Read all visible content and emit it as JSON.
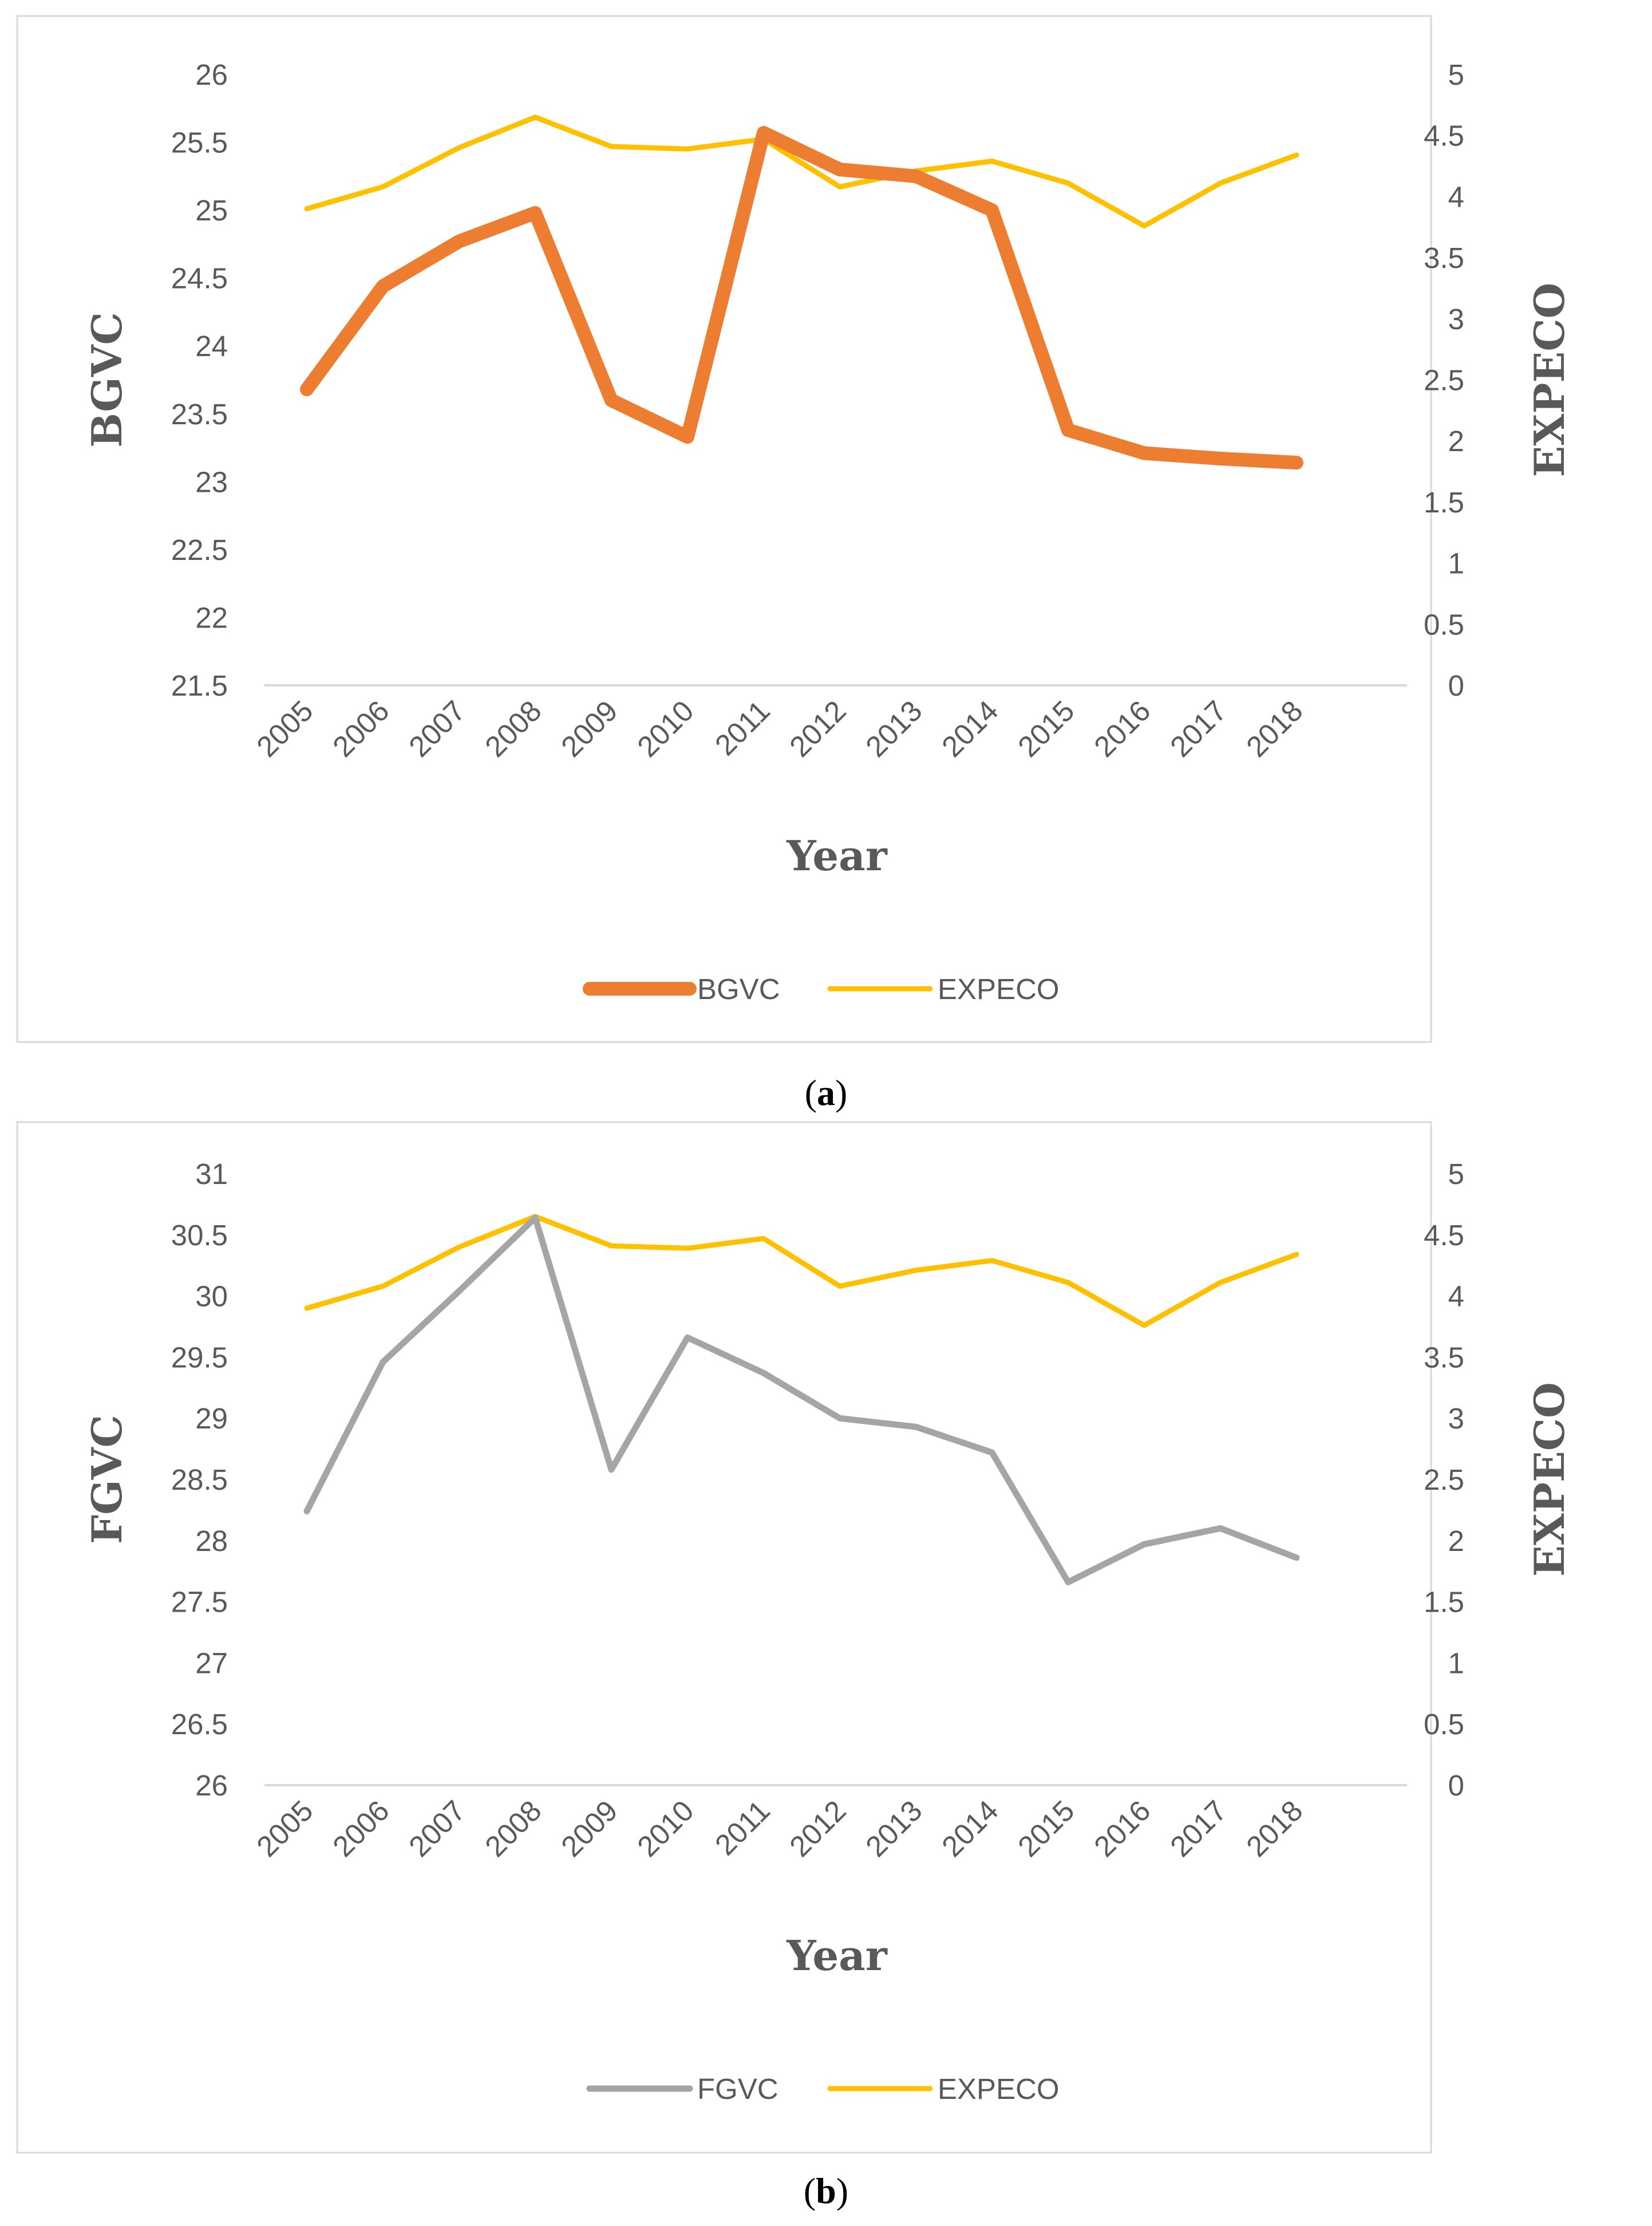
{
  "chart_data": [
    {
      "type": "line",
      "caption": "(a)",
      "caption_letter": "a",
      "x": [
        "2005",
        "2006",
        "2007",
        "2008",
        "2009",
        "2010",
        "2011",
        "2012",
        "2013",
        "2014",
        "2015",
        "2016",
        "2017",
        "2018"
      ],
      "xlabel": "Year",
      "ylabel_left": "BGVC",
      "ylabel_right": "EXPECO",
      "ylim_left": [
        21.5,
        26
      ],
      "yticks_left": [
        "26",
        "25.5",
        "25",
        "24.5",
        "24",
        "23.5",
        "23",
        "22.5",
        "22",
        "21.5"
      ],
      "ylim_right": [
        0,
        5
      ],
      "yticks_right": [
        "5",
        "4.5",
        "4",
        "3.5",
        "3",
        "2.5",
        "2",
        "1.5",
        "1",
        "0.5",
        "0"
      ],
      "legend_position": "bottom",
      "grid": false,
      "series": [
        {
          "name": "BGVC",
          "axis": "left",
          "color": "#ED7D31",
          "values": [
            23.68,
            24.44,
            24.77,
            24.98,
            23.6,
            23.33,
            25.57,
            25.3,
            25.25,
            25.0,
            23.38,
            23.21,
            23.17,
            23.14
          ]
        },
        {
          "name": "EXPECO",
          "axis": "right",
          "color": "#FFC000",
          "values": [
            3.9,
            4.08,
            4.4,
            4.65,
            4.41,
            4.39,
            4.47,
            4.08,
            4.21,
            4.29,
            4.11,
            3.76,
            4.11,
            4.34
          ]
        }
      ]
    },
    {
      "type": "line",
      "caption": "(b)",
      "caption_letter": "b",
      "x": [
        "2005",
        "2006",
        "2007",
        "2008",
        "2009",
        "2010",
        "2011",
        "2012",
        "2013",
        "2014",
        "2015",
        "2016",
        "2017",
        "2018"
      ],
      "xlabel": "Year",
      "ylabel_left": "FGVC",
      "ylabel_right": "EXPECO",
      "ylim_left": [
        26,
        31
      ],
      "yticks_left": [
        "31",
        "30.5",
        "30",
        "29.5",
        "29",
        "28.5",
        "28",
        "27.5",
        "27",
        "26.5",
        "26"
      ],
      "ylim_right": [
        0,
        5
      ],
      "yticks_right": [
        "5",
        "4.5",
        "4",
        "3.5",
        "3",
        "2.5",
        "2",
        "1.5",
        "1",
        "0.5",
        "0"
      ],
      "legend_position": "bottom",
      "grid": false,
      "series": [
        {
          "name": "FGVC",
          "axis": "left",
          "color": "#A5A5A5",
          "values": [
            28.24,
            29.46,
            30.04,
            30.64,
            28.58,
            29.66,
            29.37,
            29.0,
            28.93,
            28.72,
            27.66,
            27.97,
            28.1,
            27.86
          ]
        },
        {
          "name": "EXPECO",
          "axis": "right",
          "color": "#FFC000",
          "values": [
            3.9,
            4.08,
            4.4,
            4.65,
            4.41,
            4.39,
            4.47,
            4.08,
            4.21,
            4.29,
            4.11,
            3.76,
            4.11,
            4.34
          ]
        }
      ]
    }
  ]
}
